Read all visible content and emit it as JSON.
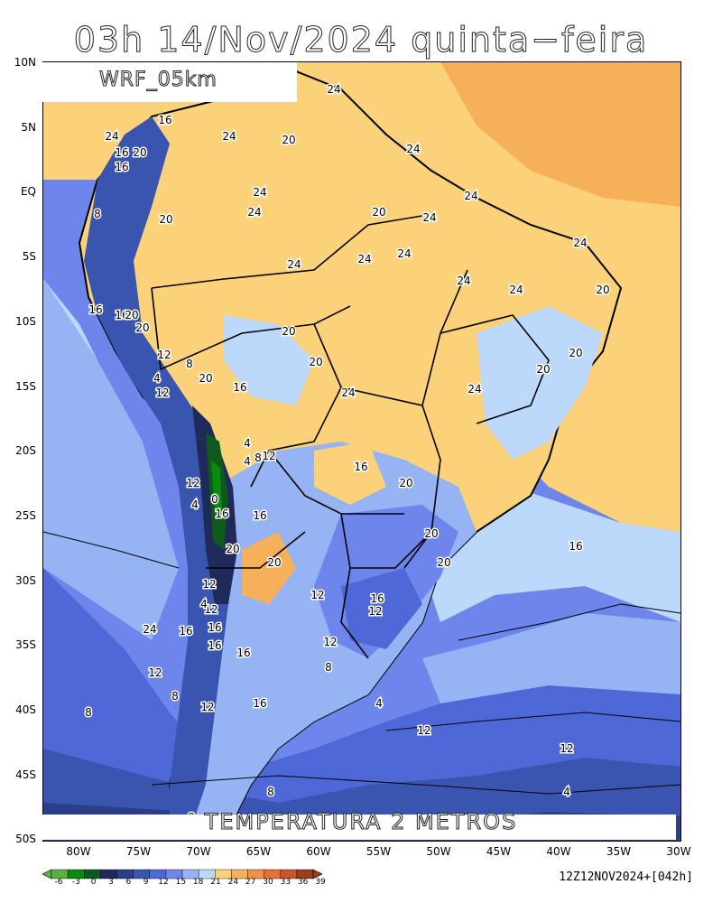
{
  "title": "03h 14/Nov/2024 quinta−feira",
  "model": "WRF_05km",
  "footer": "TEMPERATURA 2 METROS",
  "run_info": "12Z12NOV2024+[042h]",
  "lat_ticks": [
    "10N",
    "5N",
    "EQ",
    "5S",
    "10S",
    "15S",
    "20S",
    "25S",
    "30S",
    "35S",
    "40S",
    "45S",
    "50S"
  ],
  "lon_ticks": [
    "80W",
    "75W",
    "70W",
    "65W",
    "60W",
    "55W",
    "50W",
    "45W",
    "40W",
    "35W",
    "30W"
  ],
  "colorbar": {
    "labels": [
      "-6",
      "-3",
      "0",
      "3",
      "6",
      "9",
      "12",
      "15",
      "18",
      "21",
      "24",
      "27",
      "30",
      "33",
      "36",
      "39"
    ],
    "colors": [
      "#5cb040",
      "#0a8a10",
      "#0d5a1c",
      "#1f2a5a",
      "#2b3f86",
      "#3a55b0",
      "#4f68d8",
      "#6e86ec",
      "#96b4f4",
      "#bcd8fa",
      "#fbd27a",
      "#f7b05a",
      "#f2904a",
      "#e4703a",
      "#c8552c",
      "#9a3e1c"
    ]
  },
  "contour_labels": [
    "24",
    "16",
    "24",
    "20",
    "24",
    "16",
    "20",
    "16",
    "24",
    "24",
    "8",
    "24",
    "20",
    "24",
    "20",
    "24",
    "24",
    "24",
    "24",
    "24",
    "24",
    "24",
    "20",
    "16",
    "16",
    "20",
    "20",
    "12",
    "8",
    "4",
    "12",
    "20",
    "16",
    "20",
    "20",
    "24",
    "24",
    "20",
    "20",
    "4",
    "4",
    "8",
    "12",
    "16",
    "20",
    "12",
    "4",
    "0",
    "16",
    "16",
    "20",
    "20",
    "16",
    "20",
    "20",
    "12",
    "24",
    "16",
    "12",
    "12",
    "4",
    "16",
    "16",
    "12",
    "12",
    "8",
    "12",
    "16",
    "16",
    "8",
    "12",
    "16",
    "8",
    "4",
    "12",
    "8",
    "12",
    "8",
    "4"
  ],
  "colors": {
    "warm": "#fbd27a",
    "orange": "#f7b05a",
    "cool": "#96b4f4",
    "blue": "#6e86ec",
    "deep": "#2b3f86"
  }
}
